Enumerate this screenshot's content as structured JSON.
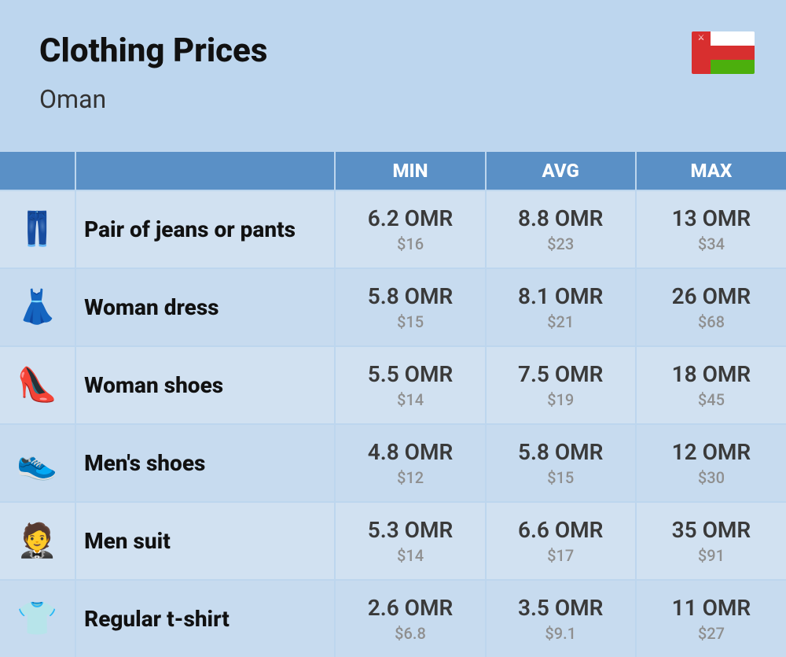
{
  "header": {
    "title": "Clothing Prices",
    "country": "Oman",
    "flag": {
      "colors": {
        "white": "#ffffff",
        "red": "#d82f2f",
        "green": "#4caf0d"
      }
    }
  },
  "table": {
    "columns": {
      "min": "MIN",
      "avg": "AVG",
      "max": "MAX"
    },
    "header_bg": "#5a90c6",
    "header_fg": "#ffffff",
    "row_bg_odd": "#d1e1f1",
    "row_bg_even": "#c7dbef",
    "main_text_color": "#3a3a3a",
    "sub_text_color": "#8f8f8f",
    "rows": [
      {
        "icon": "👖",
        "icon_name": "jeans-icon",
        "label": "Pair of jeans or pants",
        "min_main": "6.2 OMR",
        "min_sub": "$16",
        "avg_main": "8.8 OMR",
        "avg_sub": "$23",
        "max_main": "13 OMR",
        "max_sub": "$34"
      },
      {
        "icon": "👗",
        "icon_name": "dress-icon",
        "label": "Woman dress",
        "min_main": "5.8 OMR",
        "min_sub": "$15",
        "avg_main": "8.1 OMR",
        "avg_sub": "$21",
        "max_main": "26 OMR",
        "max_sub": "$68"
      },
      {
        "icon": "👠",
        "icon_name": "woman-shoes-icon",
        "label": "Woman shoes",
        "min_main": "5.5 OMR",
        "min_sub": "$14",
        "avg_main": "7.5 OMR",
        "avg_sub": "$19",
        "max_main": "18 OMR",
        "max_sub": "$45"
      },
      {
        "icon": "👟",
        "icon_name": "mens-shoes-icon",
        "label": "Men's shoes",
        "min_main": "4.8 OMR",
        "min_sub": "$12",
        "avg_main": "5.8 OMR",
        "avg_sub": "$15",
        "max_main": "12 OMR",
        "max_sub": "$30"
      },
      {
        "icon": "🤵",
        "icon_name": "men-suit-icon",
        "label": "Men suit",
        "min_main": "5.3 OMR",
        "min_sub": "$14",
        "avg_main": "6.6 OMR",
        "avg_sub": "$17",
        "max_main": "35 OMR",
        "max_sub": "$91"
      },
      {
        "icon": "👕",
        "icon_name": "tshirt-icon",
        "label": "Regular t-shirt",
        "min_main": "2.6 OMR",
        "min_sub": "$6.8",
        "avg_main": "3.5 OMR",
        "avg_sub": "$9.1",
        "max_main": "11 OMR",
        "max_sub": "$27"
      }
    ]
  }
}
